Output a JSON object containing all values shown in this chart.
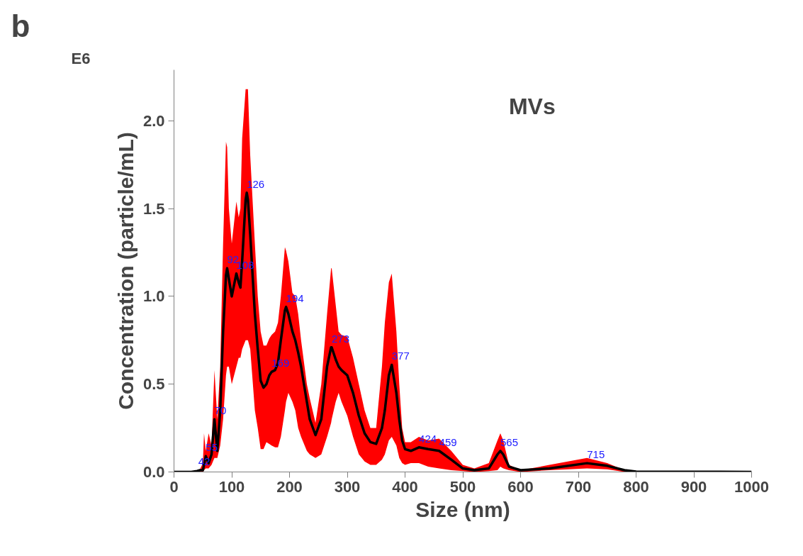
{
  "chart_data": {
    "type": "line",
    "title": "MVs",
    "xlabel": "Size (nm)",
    "ylabel": "Concentration (particle/mL)",
    "annotations": [
      "b",
      "E6",
      {
        "text": "42",
        "x": 42,
        "y": 0.01
      },
      {
        "text": "55",
        "x": 55,
        "y": 0.09
      },
      {
        "text": "70",
        "x": 70,
        "y": 0.3
      },
      {
        "text": "92",
        "x": 92,
        "y": 1.16
      },
      {
        "text": "108",
        "x": 108,
        "y": 1.13
      },
      {
        "text": "126",
        "x": 126,
        "y": 1.59
      },
      {
        "text": "169",
        "x": 169,
        "y": 0.57
      },
      {
        "text": "194",
        "x": 194,
        "y": 0.94
      },
      {
        "text": "273",
        "x": 273,
        "y": 0.71
      },
      {
        "text": "377",
        "x": 377,
        "y": 0.61
      },
      {
        "text": "424",
        "x": 424,
        "y": 0.14
      },
      {
        "text": "459",
        "x": 459,
        "y": 0.12
      },
      {
        "text": "565",
        "x": 565,
        "y": 0.12
      },
      {
        "text": "715",
        "x": 715,
        "y": 0.05
      }
    ],
    "x": [
      0,
      30,
      40,
      45,
      50,
      52,
      55,
      60,
      65,
      70,
      75,
      80,
      85,
      90,
      92,
      95,
      100,
      108,
      112,
      115,
      118,
      124,
      126,
      128,
      132,
      140,
      145,
      150,
      155,
      160,
      165,
      169,
      175,
      180,
      185,
      192,
      194,
      198,
      205,
      210,
      215,
      220,
      230,
      235,
      245,
      255,
      265,
      272,
      273,
      280,
      285,
      290,
      300,
      310,
      320,
      330,
      340,
      350,
      360,
      365,
      372,
      377,
      385,
      390,
      395,
      400,
      410,
      424,
      440,
      459,
      480,
      500,
      520,
      545,
      560,
      565,
      570,
      580,
      600,
      650,
      715,
      750,
      780,
      800,
      1000
    ],
    "series": [
      {
        "color": "#000000",
        "values": [
          0,
          0,
          0.005,
          0.01,
          0.01,
          0.04,
          0.09,
          0.05,
          0.1,
          0.3,
          0.12,
          0.35,
          0.8,
          1.12,
          1.16,
          1.1,
          1.0,
          1.13,
          1.08,
          1.05,
          1.2,
          1.55,
          1.59,
          1.55,
          1.35,
          0.9,
          0.7,
          0.52,
          0.48,
          0.5,
          0.55,
          0.57,
          0.58,
          0.62,
          0.75,
          0.92,
          0.94,
          0.9,
          0.8,
          0.75,
          0.68,
          0.6,
          0.4,
          0.3,
          0.21,
          0.3,
          0.6,
          0.71,
          0.71,
          0.64,
          0.6,
          0.58,
          0.55,
          0.45,
          0.32,
          0.22,
          0.17,
          0.16,
          0.25,
          0.35,
          0.55,
          0.61,
          0.45,
          0.3,
          0.18,
          0.13,
          0.12,
          0.14,
          0.13,
          0.12,
          0.07,
          0.02,
          0.01,
          0.02,
          0.1,
          0.12,
          0.1,
          0.03,
          0.01,
          0.02,
          0.05,
          0.035,
          0.01,
          0.002,
          0
        ],
        "lower": [
          0,
          0,
          0,
          0,
          0,
          0.01,
          0.02,
          0.02,
          0.04,
          0.08,
          0.08,
          0.15,
          0.3,
          0.55,
          0.6,
          0.6,
          0.5,
          0.6,
          0.65,
          0.65,
          0.7,
          0.75,
          0.75,
          0.75,
          0.7,
          0.35,
          0.25,
          0.13,
          0.13,
          0.17,
          0.16,
          0.15,
          0.14,
          0.14,
          0.2,
          0.35,
          0.4,
          0.45,
          0.4,
          0.35,
          0.25,
          0.2,
          0.12,
          0.1,
          0.08,
          0.1,
          0.2,
          0.28,
          0.3,
          0.4,
          0.45,
          0.4,
          0.32,
          0.2,
          0.1,
          0.06,
          0.04,
          0.04,
          0.07,
          0.1,
          0.18,
          0.2,
          0.15,
          0.08,
          0.05,
          0.04,
          0.05,
          0.05,
          0.03,
          0.02,
          0.01,
          0.005,
          0,
          0.005,
          0.01,
          0.03,
          0.02,
          0.01,
          0,
          0.01,
          0.02,
          0.015,
          0,
          0,
          0
        ],
        "upper": [
          0,
          0,
          0.01,
          0.015,
          0.05,
          0.22,
          0.12,
          0.22,
          0.15,
          0.58,
          0.3,
          0.6,
          1.3,
          1.88,
          1.85,
          1.5,
          1.3,
          1.54,
          1.45,
          1.5,
          1.9,
          2.18,
          2.18,
          2.18,
          1.8,
          1.3,
          1.0,
          0.8,
          0.72,
          0.72,
          0.76,
          0.78,
          0.8,
          0.85,
          1.0,
          1.28,
          1.26,
          1.2,
          1.02,
          1.0,
          0.9,
          0.75,
          0.5,
          0.42,
          0.28,
          0.5,
          0.9,
          1.16,
          1.16,
          0.95,
          0.8,
          0.78,
          0.77,
          0.65,
          0.5,
          0.35,
          0.25,
          0.25,
          0.6,
          0.85,
          1.08,
          1.13,
          0.8,
          0.5,
          0.25,
          0.17,
          0.17,
          0.2,
          0.18,
          0.19,
          0.12,
          0.04,
          0.02,
          0.05,
          0.18,
          0.22,
          0.18,
          0.04,
          0.01,
          0.04,
          0.08,
          0.05,
          0.01,
          0.002,
          0
        ]
      }
    ],
    "xlim": [
      0,
      1000
    ],
    "xticks": [
      0,
      100,
      200,
      300,
      400,
      500,
      600,
      700,
      800,
      900,
      1000
    ],
    "ylim": [
      0,
      2.29
    ],
    "yticks": [
      {
        "value": 0,
        "label": "0.0"
      },
      {
        "value": 0.5,
        "label": "0.5"
      },
      {
        "value": 1,
        "label": "1.0"
      },
      {
        "value": 1.5,
        "label": "1.5"
      },
      {
        "value": 2,
        "label": "2.0"
      }
    ],
    "grid": false,
    "marker": "none",
    "line_style": "solid"
  }
}
